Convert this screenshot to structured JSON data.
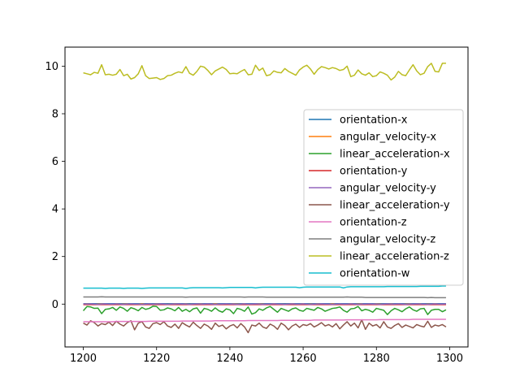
{
  "chart_data": {
    "type": "line",
    "title": "",
    "xlabel": "",
    "ylabel": "",
    "xlim": [
      1195,
      1305
    ],
    "ylim": [
      -1.8,
      10.8
    ],
    "xticks": [
      1200,
      1220,
      1240,
      1260,
      1280,
      1300
    ],
    "yticks": [
      0,
      2,
      4,
      6,
      8,
      10
    ],
    "grid": false,
    "legend_position": "center-right",
    "x": [
      1200,
      1201,
      1202,
      1203,
      1204,
      1205,
      1206,
      1207,
      1208,
      1209,
      1210,
      1211,
      1212,
      1213,
      1214,
      1215,
      1216,
      1217,
      1218,
      1219,
      1220,
      1221,
      1222,
      1223,
      1224,
      1225,
      1226,
      1227,
      1228,
      1229,
      1230,
      1231,
      1232,
      1233,
      1234,
      1235,
      1236,
      1237,
      1238,
      1239,
      1240,
      1241,
      1242,
      1243,
      1244,
      1245,
      1246,
      1247,
      1248,
      1249,
      1250,
      1251,
      1252,
      1253,
      1254,
      1255,
      1256,
      1257,
      1258,
      1259,
      1260,
      1261,
      1262,
      1263,
      1264,
      1265,
      1266,
      1267,
      1268,
      1269,
      1270,
      1271,
      1272,
      1273,
      1274,
      1275,
      1276,
      1277,
      1278,
      1279,
      1280,
      1281,
      1282,
      1283,
      1284,
      1285,
      1286,
      1287,
      1288,
      1289,
      1290,
      1291,
      1292,
      1293,
      1294,
      1295,
      1296,
      1297,
      1298,
      1299
    ],
    "series": [
      {
        "name": "orientation-x",
        "color": "#1f77b4",
        "values": [
          0.02,
          0.02,
          0.02,
          0.02,
          0.02,
          0.02,
          0.02,
          0.02,
          0.02,
          0.02,
          0.02,
          0.02,
          0.02,
          0.02,
          0.02,
          0.02,
          0.02,
          0.02,
          0.02,
          0.02,
          0.02,
          0.02,
          0.02,
          0.02,
          0.02,
          0.02,
          0.02,
          0.02,
          0.02,
          0.02,
          0.02,
          0.02,
          0.02,
          0.02,
          0.02,
          0.02,
          0.02,
          0.02,
          0.02,
          0.02,
          0.02,
          0.02,
          0.02,
          0.02,
          0.02,
          0.02,
          0.02,
          0.02,
          0.02,
          0.02,
          0.02,
          0.02,
          0.02,
          0.02,
          0.02,
          0.02,
          0.02,
          0.02,
          0.02,
          0.02,
          0.02,
          0.02,
          0.02,
          0.02,
          0.02,
          0.02,
          0.02,
          0.02,
          0.02,
          0.02,
          0.02,
          0.02,
          0.02,
          0.02,
          0.02,
          0.02,
          0.02,
          0.02,
          0.02,
          0.02,
          0.02,
          0.02,
          0.02,
          0.02,
          0.02,
          0.02,
          0.02,
          0.02,
          0.02,
          0.02,
          0.02,
          0.02,
          0.02,
          0.02,
          0.02,
          0.02,
          0.02,
          0.02,
          0.02,
          0.02
        ]
      },
      {
        "name": "angular_velocity-x",
        "color": "#ff7f0e",
        "values": [
          0.0,
          0.01,
          0.0,
          -0.01,
          0.0,
          0.01,
          0.0,
          0.0,
          -0.01,
          0.01,
          0.0,
          0.0,
          0.01,
          -0.01,
          0.0,
          0.0,
          0.01,
          0.0,
          -0.01,
          0.0,
          0.01,
          0.0,
          0.0,
          -0.01,
          0.0,
          0.01,
          0.0,
          0.0,
          0.01,
          -0.01,
          0.0,
          0.0,
          0.01,
          0.0,
          -0.01,
          0.0,
          0.01,
          0.0,
          0.0,
          -0.01,
          0.0,
          0.01,
          0.0,
          0.0,
          0.01,
          -0.01,
          0.0,
          0.0,
          0.01,
          0.0,
          -0.01,
          0.0,
          0.01,
          0.0,
          0.0,
          -0.01,
          0.0,
          0.01,
          0.0,
          0.0,
          0.01,
          -0.01,
          0.0,
          0.0,
          0.01,
          0.0,
          -0.01,
          0.0,
          0.01,
          0.0,
          0.0,
          -0.01,
          0.0,
          0.01,
          0.0,
          0.0,
          0.01,
          -0.01,
          0.0,
          0.0,
          0.01,
          0.0,
          -0.01,
          0.0,
          0.01,
          0.0,
          0.0,
          -0.01,
          0.0,
          0.01,
          0.0,
          0.0,
          0.01,
          -0.01,
          0.0,
          0.0,
          0.01,
          0.0,
          -0.01,
          0.0
        ]
      },
      {
        "name": "linear_acceleration-x",
        "color": "#2ca02c",
        "values": [
          -0.28,
          -0.1,
          -0.12,
          -0.18,
          -0.17,
          -0.4,
          -0.22,
          -0.2,
          -0.14,
          -0.26,
          -0.12,
          -0.18,
          -0.3,
          -0.15,
          -0.2,
          -0.28,
          -0.14,
          -0.22,
          -0.18,
          -0.09,
          -0.1,
          -0.26,
          -0.24,
          -0.16,
          -0.2,
          -0.28,
          -0.14,
          -0.3,
          -0.22,
          -0.32,
          -0.2,
          -0.16,
          -0.38,
          -0.18,
          -0.22,
          -0.3,
          -0.16,
          -0.28,
          -0.34,
          -0.2,
          -0.24,
          -0.4,
          -0.18,
          -0.22,
          -0.3,
          -0.12,
          -0.42,
          -0.36,
          -0.2,
          -0.26,
          -0.16,
          -0.1,
          -0.22,
          -0.34,
          -0.18,
          -0.24,
          -0.3,
          -0.2,
          -0.16,
          -0.26,
          -0.3,
          -0.18,
          -0.22,
          -0.26,
          -0.14,
          -0.2,
          -0.3,
          -0.24,
          -0.18,
          -0.16,
          -0.12,
          -0.26,
          -0.34,
          -0.2,
          -0.18,
          -0.1,
          -0.28,
          -0.22,
          -0.26,
          -0.34,
          -0.18,
          -0.22,
          -0.26,
          -0.44,
          -0.28,
          -0.18,
          -0.24,
          -0.32,
          -0.2,
          -0.12,
          -0.24,
          -0.3,
          -0.2,
          -0.18,
          -0.44,
          -0.26,
          -0.22,
          -0.22,
          -0.32,
          -0.24
        ]
      },
      {
        "name": "orientation-y",
        "color": "#d62728",
        "values": [
          -0.02,
          -0.02,
          -0.02,
          -0.02,
          -0.02,
          -0.02,
          -0.02,
          -0.02,
          -0.02,
          -0.02,
          -0.02,
          -0.02,
          -0.02,
          -0.02,
          -0.02,
          -0.02,
          -0.02,
          -0.02,
          -0.02,
          -0.02,
          -0.02,
          -0.02,
          -0.02,
          -0.02,
          -0.02,
          -0.02,
          -0.02,
          -0.02,
          -0.02,
          -0.02,
          -0.02,
          -0.02,
          -0.02,
          -0.02,
          -0.02,
          -0.02,
          -0.02,
          -0.02,
          -0.02,
          -0.02,
          -0.02,
          -0.02,
          -0.02,
          -0.02,
          -0.02,
          -0.02,
          -0.02,
          -0.02,
          -0.02,
          -0.02,
          -0.02,
          -0.02,
          -0.02,
          -0.02,
          -0.02,
          -0.02,
          -0.02,
          -0.02,
          -0.02,
          -0.02,
          -0.02,
          -0.02,
          -0.02,
          -0.02,
          -0.02,
          -0.02,
          -0.02,
          -0.02,
          -0.02,
          -0.02,
          -0.02,
          -0.02,
          -0.02,
          -0.02,
          -0.02,
          -0.02,
          -0.02,
          -0.02,
          -0.02,
          -0.02,
          -0.02,
          -0.02,
          -0.02,
          -0.02,
          -0.02,
          -0.02,
          -0.02,
          -0.02,
          -0.02,
          -0.02,
          -0.02,
          -0.02,
          -0.02,
          -0.02,
          -0.02,
          -0.02,
          -0.02,
          -0.02,
          -0.02,
          -0.02
        ]
      },
      {
        "name": "angular_velocity-y",
        "color": "#9467bd",
        "values": [
          0.01,
          0.0,
          0.01,
          0.0,
          -0.01,
          0.0,
          0.01,
          0.0,
          0.0,
          0.01,
          0.0,
          -0.01,
          0.0,
          0.01,
          0.0,
          0.0,
          -0.01,
          0.0,
          0.01,
          0.0,
          0.0,
          0.01,
          0.0,
          -0.01,
          0.0,
          0.0,
          0.01,
          0.0,
          0.0,
          -0.01,
          0.0,
          0.01,
          0.0,
          0.0,
          0.01,
          0.0,
          -0.01,
          0.0,
          0.0,
          0.01,
          0.0,
          0.0,
          -0.01,
          0.0,
          0.01,
          0.0,
          0.0,
          0.01,
          0.0,
          -0.01,
          0.0,
          0.0,
          0.01,
          0.0,
          0.0,
          -0.01,
          0.0,
          0.01,
          0.0,
          0.0,
          0.01,
          0.0,
          -0.01,
          0.0,
          0.0,
          0.01,
          0.0,
          0.0,
          -0.01,
          0.0,
          0.01,
          0.0,
          0.0,
          0.01,
          0.0,
          -0.01,
          0.0,
          0.0,
          0.01,
          0.0,
          0.0,
          -0.01,
          0.0,
          0.01,
          0.0,
          0.0,
          0.01,
          0.0,
          -0.01,
          0.0,
          0.0,
          0.01,
          0.0,
          0.0,
          -0.01,
          0.0,
          0.01,
          0.0,
          0.0,
          0.01
        ]
      },
      {
        "name": "linear_acceleration-y",
        "color": "#8c564b",
        "values": [
          -0.8,
          -0.88,
          -0.7,
          -0.78,
          -0.92,
          -0.82,
          -0.86,
          -0.76,
          -0.9,
          -0.72,
          -0.84,
          -0.92,
          -0.78,
          -0.7,
          -1.08,
          -0.8,
          -0.74,
          -0.96,
          -1.02,
          -0.82,
          -0.78,
          -0.86,
          -0.74,
          -0.92,
          -0.98,
          -0.84,
          -1.02,
          -0.78,
          -0.88,
          -0.96,
          -0.76,
          -0.9,
          -1.02,
          -0.84,
          -0.92,
          -1.06,
          -0.8,
          -0.94,
          -0.88,
          -1.04,
          -0.92,
          -0.86,
          -1.0,
          -0.82,
          -0.96,
          -1.2,
          -0.88,
          -0.92,
          -0.8,
          -0.96,
          -1.02,
          -0.84,
          -0.92,
          -1.06,
          -0.8,
          -0.9,
          -1.08,
          -0.92,
          -0.84,
          -0.98,
          -0.86,
          -0.9,
          -0.82,
          -0.96,
          -0.88,
          -0.78,
          -0.92,
          -0.86,
          -0.96,
          -0.82,
          -1.04,
          -0.88,
          -0.74,
          -0.92,
          -0.8,
          -1.0,
          -0.66,
          -1.06,
          -0.8,
          -0.92,
          -0.86,
          -1.0,
          -0.74,
          -0.96,
          -1.02,
          -0.9,
          -0.82,
          -0.98,
          -0.88,
          -0.94,
          -1.0,
          -0.86,
          -0.92,
          -0.96,
          -0.72,
          -0.98,
          -0.88,
          -0.92,
          -0.86,
          -0.96
        ]
      },
      {
        "name": "orientation-z",
        "color": "#e377c2",
        "values": [
          -0.74,
          -0.74,
          -0.74,
          -0.74,
          -0.74,
          -0.74,
          -0.74,
          -0.74,
          -0.74,
          -0.73,
          -0.73,
          -0.73,
          -0.73,
          -0.73,
          -0.73,
          -0.73,
          -0.73,
          -0.73,
          -0.72,
          -0.72,
          -0.72,
          -0.72,
          -0.72,
          -0.72,
          -0.72,
          -0.72,
          -0.72,
          -0.71,
          -0.71,
          -0.71,
          -0.71,
          -0.71,
          -0.71,
          -0.71,
          -0.71,
          -0.71,
          -0.7,
          -0.7,
          -0.7,
          -0.7,
          -0.7,
          -0.7,
          -0.7,
          -0.7,
          -0.7,
          -0.69,
          -0.69,
          -0.69,
          -0.69,
          -0.69,
          -0.69,
          -0.69,
          -0.69,
          -0.69,
          -0.68,
          -0.68,
          -0.68,
          -0.68,
          -0.68,
          -0.68,
          -0.68,
          -0.68,
          -0.68,
          -0.67,
          -0.67,
          -0.67,
          -0.67,
          -0.67,
          -0.67,
          -0.67,
          -0.67,
          -0.67,
          -0.66,
          -0.66,
          -0.66,
          -0.66,
          -0.66,
          -0.66,
          -0.66,
          -0.66,
          -0.66,
          -0.65,
          -0.65,
          -0.65,
          -0.65,
          -0.65,
          -0.65,
          -0.65,
          -0.65,
          -0.65,
          -0.64,
          -0.64,
          -0.64,
          -0.64,
          -0.64,
          -0.64,
          -0.64,
          -0.64,
          -0.64,
          -0.64
        ]
      },
      {
        "name": "angular_velocity-z",
        "color": "#7f7f7f",
        "values": [
          0.3,
          0.3,
          0.3,
          0.3,
          0.3,
          0.31,
          0.3,
          0.3,
          0.3,
          0.3,
          0.3,
          0.3,
          0.3,
          0.3,
          0.3,
          0.3,
          0.3,
          0.3,
          0.3,
          0.3,
          0.3,
          0.3,
          0.3,
          0.3,
          0.3,
          0.3,
          0.3,
          0.3,
          0.29,
          0.3,
          0.3,
          0.3,
          0.3,
          0.3,
          0.3,
          0.3,
          0.3,
          0.3,
          0.3,
          0.3,
          0.3,
          0.3,
          0.3,
          0.3,
          0.29,
          0.3,
          0.3,
          0.3,
          0.3,
          0.3,
          0.29,
          0.29,
          0.29,
          0.29,
          0.29,
          0.29,
          0.29,
          0.29,
          0.29,
          0.29,
          0.29,
          0.29,
          0.29,
          0.29,
          0.29,
          0.29,
          0.29,
          0.29,
          0.29,
          0.29,
          0.29,
          0.29,
          0.3,
          0.29,
          0.29,
          0.29,
          0.29,
          0.28,
          0.28,
          0.28,
          0.28,
          0.28,
          0.28,
          0.28,
          0.28,
          0.28,
          0.28,
          0.28,
          0.28,
          0.28,
          0.28,
          0.28,
          0.28,
          0.28,
          0.27,
          0.28,
          0.27,
          0.27,
          0.27,
          0.27
        ]
      },
      {
        "name": "linear_acceleration-z",
        "color": "#bcbd22",
        "values": [
          9.72,
          9.68,
          9.64,
          9.74,
          9.7,
          10.06,
          9.64,
          9.66,
          9.62,
          9.66,
          9.86,
          9.6,
          9.66,
          9.46,
          9.52,
          9.68,
          10.02,
          9.6,
          9.48,
          9.5,
          9.52,
          9.44,
          9.48,
          9.6,
          9.62,
          9.7,
          9.76,
          9.72,
          9.98,
          9.7,
          9.62,
          9.78,
          10.0,
          9.96,
          9.82,
          9.64,
          9.8,
          9.88,
          9.96,
          9.86,
          9.68,
          9.7,
          9.68,
          9.78,
          9.86,
          9.64,
          9.66,
          10.04,
          9.82,
          9.92,
          9.6,
          9.64,
          9.8,
          9.74,
          9.72,
          9.9,
          9.78,
          9.7,
          9.62,
          9.84,
          9.96,
          10.04,
          9.88,
          9.66,
          9.86,
          9.98,
          9.94,
          9.88,
          9.94,
          9.9,
          9.82,
          9.86,
          10.0,
          9.56,
          9.62,
          9.84,
          9.68,
          9.62,
          9.72,
          9.56,
          9.6,
          9.76,
          9.7,
          9.62,
          9.42,
          9.54,
          9.78,
          9.64,
          9.6,
          9.84,
          10.06,
          9.8,
          9.64,
          9.7,
          9.98,
          10.12,
          9.78,
          9.76,
          10.12,
          10.12
        ]
      },
      {
        "name": "orientation-w",
        "color": "#17becf",
        "values": [
          0.67,
          0.67,
          0.67,
          0.67,
          0.67,
          0.67,
          0.66,
          0.67,
          0.67,
          0.67,
          0.67,
          0.66,
          0.67,
          0.67,
          0.67,
          0.67,
          0.66,
          0.67,
          0.68,
          0.68,
          0.68,
          0.68,
          0.68,
          0.68,
          0.68,
          0.68,
          0.68,
          0.68,
          0.66,
          0.68,
          0.69,
          0.69,
          0.69,
          0.69,
          0.69,
          0.69,
          0.69,
          0.69,
          0.68,
          0.69,
          0.7,
          0.7,
          0.7,
          0.7,
          0.7,
          0.7,
          0.7,
          0.68,
          0.7,
          0.71,
          0.71,
          0.71,
          0.71,
          0.71,
          0.71,
          0.71,
          0.71,
          0.71,
          0.71,
          0.69,
          0.71,
          0.72,
          0.72,
          0.72,
          0.72,
          0.72,
          0.72,
          0.72,
          0.72,
          0.72,
          0.72,
          0.68,
          0.72,
          0.73,
          0.73,
          0.73,
          0.73,
          0.73,
          0.73,
          0.73,
          0.73,
          0.73,
          0.73,
          0.74,
          0.74,
          0.74,
          0.74,
          0.74,
          0.74,
          0.74,
          0.74,
          0.74,
          0.75,
          0.75,
          0.75,
          0.75,
          0.75,
          0.75,
          0.76,
          0.76
        ]
      }
    ]
  }
}
